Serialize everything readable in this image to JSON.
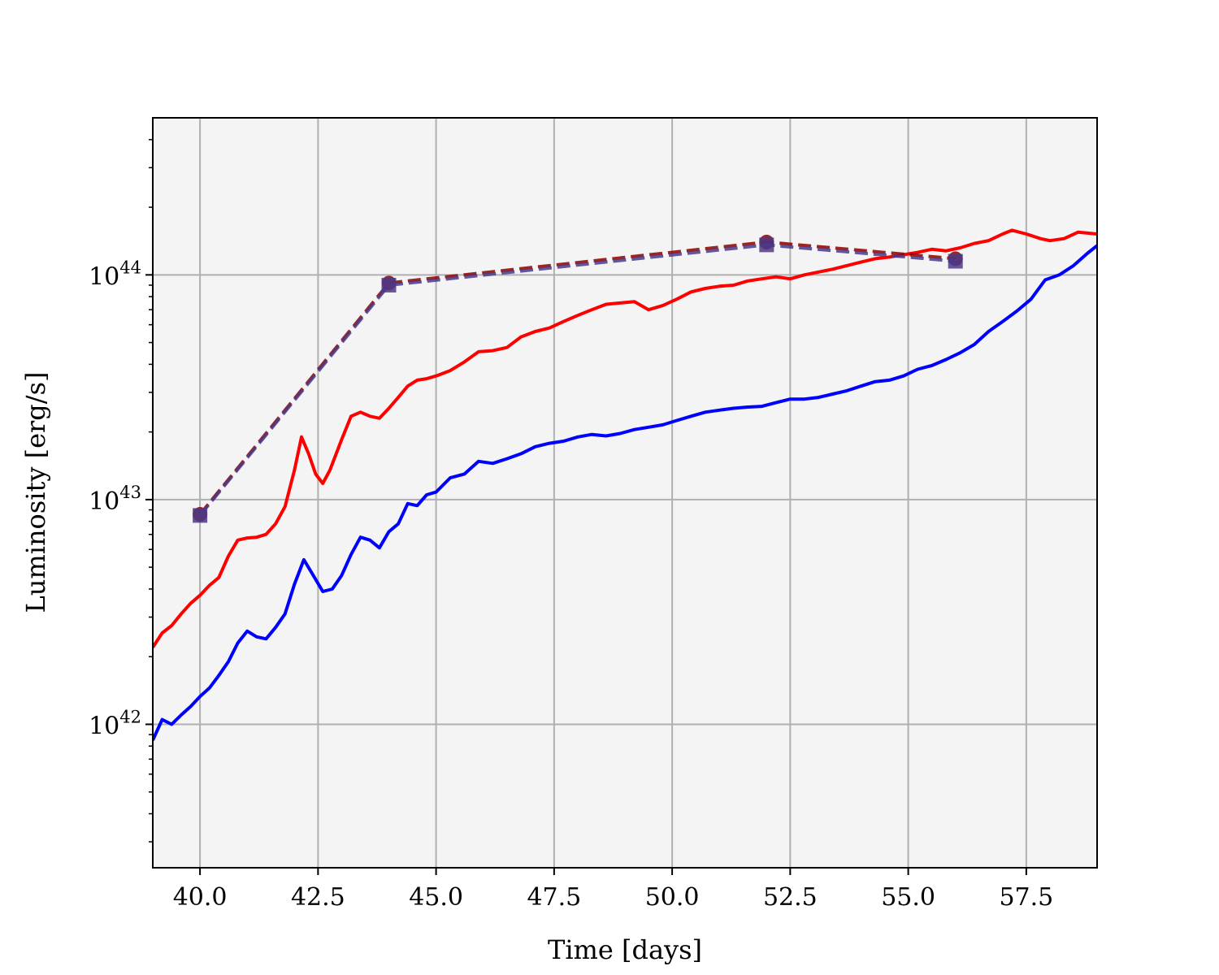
{
  "chart_data": {
    "type": "line",
    "title": "",
    "xlabel": "Time [days]",
    "ylabel": "Luminosity [erg/s]",
    "xlim": [
      39.0,
      59.0
    ],
    "ylim": [
      2.3e+41,
      5e+44
    ],
    "yscale": "log",
    "grid": true,
    "legend": "none",
    "background_color": "#f4f4f4",
    "x_ticks": [
      40.0,
      42.5,
      45.0,
      47.5,
      50.0,
      52.5,
      55.0,
      57.5
    ],
    "x_tick_labels": [
      "40.0",
      "42.5",
      "45.0",
      "47.5",
      "50.0",
      "52.5",
      "55.0",
      "57.5"
    ],
    "y_ticks": [
      1e+42,
      1e+43,
      1e+44
    ],
    "y_tick_labels": [
      {
        "base": "10",
        "exp": "42"
      },
      {
        "base": "10",
        "exp": "43"
      },
      {
        "base": "10",
        "exp": "44"
      }
    ],
    "series": [
      {
        "color": "#ff0000",
        "style": "solid",
        "x": [
          39.0,
          39.2,
          39.4,
          39.6,
          39.8,
          40.0,
          40.2,
          40.4,
          40.6,
          40.8,
          41.0,
          41.2,
          41.4,
          41.6,
          41.8,
          42.0,
          42.15,
          42.3,
          42.45,
          42.6,
          42.75,
          43.0,
          43.2,
          43.4,
          43.6,
          43.8,
          44.0,
          44.2,
          44.4,
          44.6,
          44.8,
          45.0,
          45.3,
          45.6,
          45.9,
          46.2,
          46.5,
          46.8,
          47.1,
          47.4,
          47.7,
          48.0,
          48.3,
          48.6,
          48.9,
          49.2,
          49.5,
          49.8,
          50.1,
          50.4,
          50.7,
          51.0,
          51.3,
          51.6,
          51.9,
          52.2,
          52.5,
          52.8,
          53.1,
          53.4,
          53.7,
          54.0,
          54.3,
          54.6,
          54.9,
          55.2,
          55.5,
          55.8,
          56.1,
          56.4,
          56.7,
          57.0,
          57.2,
          57.5,
          57.8,
          58.0,
          58.3,
          58.6,
          59.0
        ],
        "y": [
          2.2e+42,
          2.55e+42,
          2.75e+42,
          3.1e+42,
          3.45e+42,
          3.75e+42,
          4.15e+42,
          4.5e+42,
          5.6e+42,
          6.6e+42,
          6.75e+42,
          6.8e+42,
          7e+42,
          7.8e+42,
          9.3e+42,
          1.35e+43,
          1.9e+43,
          1.6e+43,
          1.3e+43,
          1.18e+43,
          1.35e+43,
          1.85e+43,
          2.35e+43,
          2.45e+43,
          2.35e+43,
          2.3e+43,
          2.55e+43,
          2.85e+43,
          3.2e+43,
          3.4e+43,
          3.45e+43,
          3.55e+43,
          3.75e+43,
          4.1e+43,
          4.55e+43,
          4.6e+43,
          4.75e+43,
          5.3e+43,
          5.6e+43,
          5.8e+43,
          6.2e+43,
          6.6e+43,
          7e+43,
          7.4e+43,
          7.5e+43,
          7.6e+43,
          7e+43,
          7.3e+43,
          7.8e+43,
          8.4e+43,
          8.7e+43,
          8.9e+43,
          9e+43,
          9.4e+43,
          9.6e+43,
          9.8e+43,
          9.6e+43,
          1e+44,
          1.03e+44,
          1.06e+44,
          1.1e+44,
          1.14e+44,
          1.18e+44,
          1.2e+44,
          1.23e+44,
          1.26e+44,
          1.3e+44,
          1.28e+44,
          1.32e+44,
          1.38e+44,
          1.42e+44,
          1.52e+44,
          1.58e+44,
          1.52e+44,
          1.45e+44,
          1.42e+44,
          1.45e+44,
          1.55e+44,
          1.52e+44
        ]
      },
      {
        "color": "#0000ff",
        "style": "solid",
        "x": [
          39.0,
          39.2,
          39.4,
          39.6,
          39.8,
          40.0,
          40.2,
          40.4,
          40.6,
          40.8,
          41.0,
          41.2,
          41.4,
          41.6,
          41.8,
          42.0,
          42.2,
          42.4,
          42.6,
          42.8,
          43.0,
          43.2,
          43.4,
          43.6,
          43.8,
          44.0,
          44.2,
          44.4,
          44.6,
          44.8,
          45.0,
          45.3,
          45.6,
          45.9,
          46.2,
          46.5,
          46.8,
          47.1,
          47.4,
          47.7,
          48.0,
          48.3,
          48.6,
          48.9,
          49.2,
          49.5,
          49.8,
          50.1,
          50.4,
          50.7,
          51.0,
          51.3,
          51.6,
          51.9,
          52.2,
          52.5,
          52.8,
          53.1,
          53.4,
          53.7,
          54.0,
          54.3,
          54.6,
          54.9,
          55.2,
          55.5,
          55.8,
          56.1,
          56.4,
          56.7,
          57.0,
          57.3,
          57.6,
          57.9,
          58.2,
          58.5,
          58.8,
          59.0
        ],
        "y": [
          8.5e+41,
          1.05e+42,
          1e+42,
          1.1e+42,
          1.2e+42,
          1.33e+42,
          1.45e+42,
          1.65e+42,
          1.9e+42,
          2.3e+42,
          2.6e+42,
          2.45e+42,
          2.4e+42,
          2.7e+42,
          3.1e+42,
          4.2e+42,
          5.4e+42,
          4.6e+42,
          3.9e+42,
          4e+42,
          4.6e+42,
          5.7e+42,
          6.8e+42,
          6.6e+42,
          6.1e+42,
          7.2e+42,
          7.8e+42,
          9.6e+42,
          9.4e+42,
          1.05e+43,
          1.08e+43,
          1.25e+43,
          1.3e+43,
          1.48e+43,
          1.45e+43,
          1.52e+43,
          1.6e+43,
          1.72e+43,
          1.78e+43,
          1.82e+43,
          1.9e+43,
          1.95e+43,
          1.92e+43,
          1.97e+43,
          2.05e+43,
          2.1e+43,
          2.15e+43,
          2.25e+43,
          2.35e+43,
          2.45e+43,
          2.5e+43,
          2.55e+43,
          2.58e+43,
          2.6e+43,
          2.7e+43,
          2.8e+43,
          2.8e+43,
          2.85e+43,
          2.95e+43,
          3.05e+43,
          3.2e+43,
          3.35e+43,
          3.4e+43,
          3.55e+43,
          3.8e+43,
          3.95e+43,
          4.2e+43,
          4.5e+43,
          4.9e+43,
          5.6e+43,
          6.2e+43,
          6.9e+43,
          7.8e+43,
          9.5e+43,
          1e+44,
          1.1e+44,
          1.25e+44,
          1.35e+44
        ]
      },
      {
        "color": "#8b0000",
        "style": "dashed",
        "marker": "circle",
        "x": [
          40.0,
          44.0,
          52.0,
          56.0
        ],
        "y": [
          8.6e+42,
          9.2e+43,
          1.4e+44,
          1.18e+44
        ]
      },
      {
        "color": "#4a3a8a",
        "style": "dashed",
        "marker": "square",
        "x": [
          40.0,
          44.0,
          52.0,
          56.0
        ],
        "y": [
          8.5e+42,
          9e+43,
          1.36e+44,
          1.15e+44
        ]
      }
    ]
  }
}
